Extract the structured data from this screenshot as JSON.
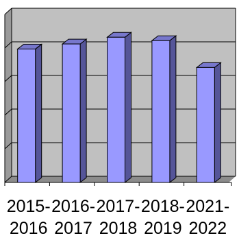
{
  "chart_data": {
    "type": "bar",
    "style": "3d-column",
    "categories": [
      "2015-2016",
      "2016-2017",
      "2017-2018",
      "2018-2019",
      "2021-2022"
    ],
    "x_tick_lines": [
      [
        "2015-",
        "2016"
      ],
      [
        "2016-",
        "2017"
      ],
      [
        "2017-",
        "2018"
      ],
      [
        "2018-",
        "2019"
      ],
      [
        "2021-",
        "2022"
      ]
    ],
    "values": [
      79,
      82,
      86,
      84,
      68
    ],
    "ylim": [
      0,
      100
    ],
    "y_gridlines": [
      0,
      20,
      40,
      60,
      80,
      100
    ],
    "grid": true,
    "title": "",
    "xlabel": "",
    "ylabel": "",
    "legend": "none",
    "colors": {
      "bar_front": "#9999FF",
      "bar_side": "#555599",
      "bar_top": "#7777CC",
      "back_wall": "#C0C0C0",
      "side_wall": "#9A9A9A",
      "floor": "#8C8C8C",
      "grid": "#000000"
    }
  }
}
